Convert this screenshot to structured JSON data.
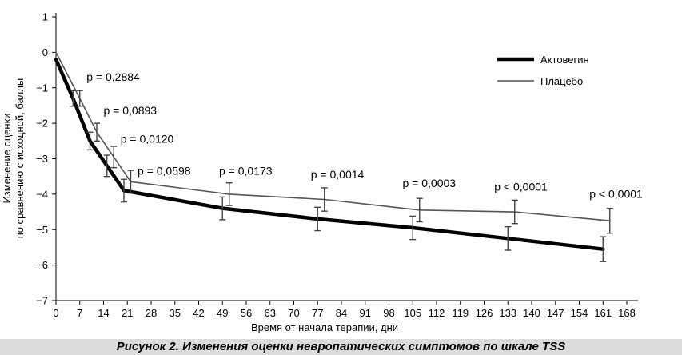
{
  "caption": "Рисунок 2. Изменения оценки невропатических симптомов по шкале TSS",
  "chart_data": {
    "type": "line",
    "title": "",
    "xlabel": "Время от начала терапии, дни",
    "ylabel_lines": [
      "Изменение оценки",
      "по сравнению с исходной, баллы"
    ],
    "xlim": [
      0,
      168
    ],
    "ylim": [
      -7,
      1
    ],
    "x_ticks": [
      "0",
      "7",
      "14",
      "21",
      "28",
      "35",
      "42",
      "49",
      "56",
      "63",
      "70",
      "77",
      "84",
      "91",
      "98",
      "105",
      "112",
      "119",
      "126",
      "133",
      "140",
      "147",
      "154",
      "161",
      "168"
    ],
    "y_ticks": [
      "1",
      "0",
      "−1",
      "−2",
      "−3",
      "−4",
      "−5",
      "−6",
      "−7"
    ],
    "series": [
      {
        "name": "Актовегин",
        "color": "#000000",
        "points": [
          {
            "x": 0,
            "y": -0.2
          },
          {
            "x": 5,
            "y": -1.3,
            "err": 0.22
          },
          {
            "x": 10,
            "y": -2.5,
            "err": 0.25
          },
          {
            "x": 15,
            "y": -3.2,
            "err": 0.3
          },
          {
            "x": 20,
            "y": -3.9,
            "err": 0.32
          },
          {
            "x": 49,
            "y": -4.4,
            "err": 0.32
          },
          {
            "x": 77,
            "y": -4.7,
            "err": 0.33
          },
          {
            "x": 105,
            "y": -4.95,
            "err": 0.33
          },
          {
            "x": 133,
            "y": -5.25,
            "err": 0.33
          },
          {
            "x": 161,
            "y": -5.55,
            "err": 0.35
          }
        ]
      },
      {
        "name": "Плацебо",
        "color": "#555555",
        "points": [
          {
            "x": 0,
            "y": 0
          },
          {
            "x": 7,
            "y": -1.3,
            "err": 0.22
          },
          {
            "x": 12,
            "y": -2.25,
            "err": 0.25
          },
          {
            "x": 17,
            "y": -2.95,
            "err": 0.3
          },
          {
            "x": 22,
            "y": -3.65,
            "err": 0.32
          },
          {
            "x": 51,
            "y": -4.0,
            "err": 0.32
          },
          {
            "x": 79,
            "y": -4.15,
            "err": 0.33
          },
          {
            "x": 107,
            "y": -4.45,
            "err": 0.33
          },
          {
            "x": 135,
            "y": -4.5,
            "err": 0.33
          },
          {
            "x": 163,
            "y": -4.75,
            "err": 0.35
          }
        ]
      }
    ],
    "annotations": [
      {
        "text": "p = 0,2884",
        "x": 9,
        "y": -0.8
      },
      {
        "text": "p = 0,0893",
        "x": 14,
        "y": -1.75
      },
      {
        "text": "p = 0,0120",
        "x": 19,
        "y": -2.55
      },
      {
        "text": "p = 0,0598",
        "x": 24,
        "y": -3.45
      },
      {
        "text": "p = 0,0173",
        "x": 48,
        "y": -3.45
      },
      {
        "text": "p = 0,0014",
        "x": 75,
        "y": -3.55
      },
      {
        "text": "p = 0,0003",
        "x": 102,
        "y": -3.8
      },
      {
        "text": "p ˂ 0,0001",
        "x": 129,
        "y": -3.9
      },
      {
        "text": "p ˂ 0,0001",
        "x": 157,
        "y": -4.1
      }
    ],
    "legend_position": "top-right"
  }
}
